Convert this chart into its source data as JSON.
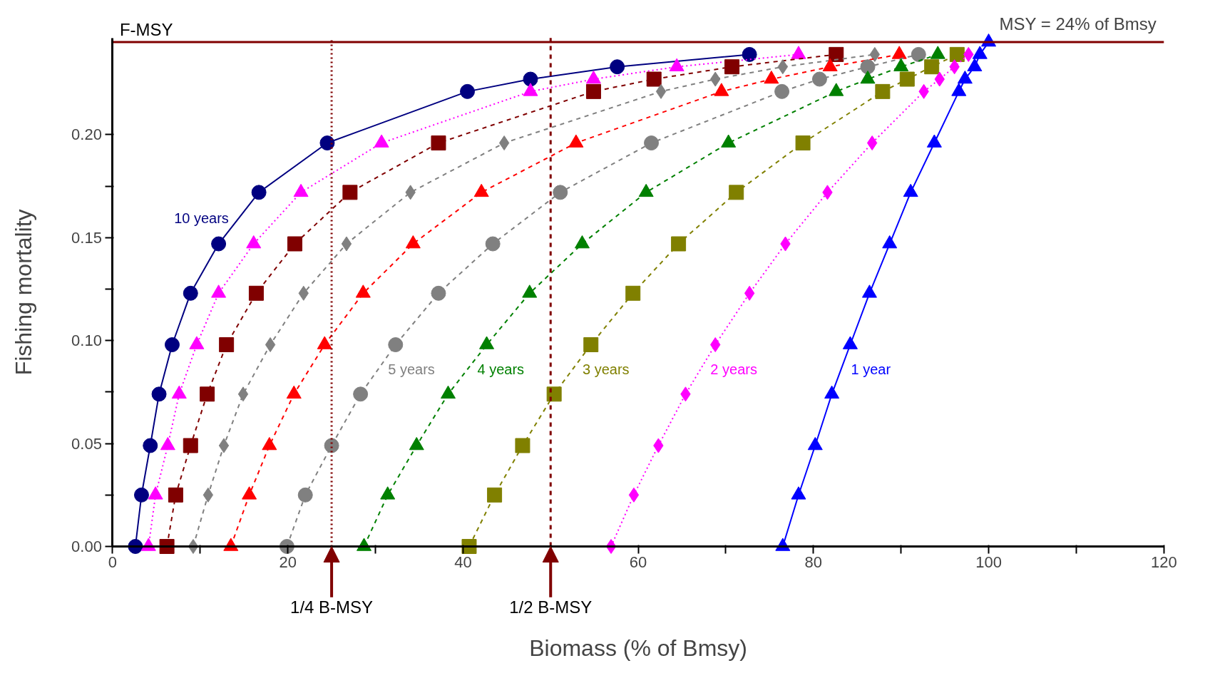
{
  "chart_data": {
    "type": "line",
    "xlabel": "Biomass (% of Bmsy)",
    "ylabel": "Fishing mortality",
    "xlim": [
      0,
      120
    ],
    "ylim": [
      0,
      0.247
    ],
    "xticks": [
      0,
      {
        "value": 10,
        "label": null
      },
      20,
      {
        "value": 30,
        "label": null
      },
      40,
      {
        "value": 50,
        "label": null
      },
      60,
      {
        "value": 70,
        "label": null
      },
      80,
      {
        "value": 90,
        "label": null
      },
      100,
      {
        "value": 110,
        "label": null
      },
      120
    ],
    "yticks": [
      {
        "value": 0,
        "label": "0.00"
      },
      {
        "value": 0.025,
        "label": null
      },
      {
        "value": 0.05,
        "label": "0.05"
      },
      {
        "value": 0.075,
        "label": null
      },
      {
        "value": 0.1,
        "label": "0.10"
      },
      {
        "value": 0.125,
        "label": null
      },
      {
        "value": 0.15,
        "label": "0.15"
      },
      {
        "value": 0.175,
        "label": null
      },
      {
        "value": 0.2,
        "label": "0.20"
      }
    ],
    "grid": false,
    "ref_lines": [
      {
        "axis": "y",
        "value": 0.245,
        "label": "F-MSY",
        "color": "#800000",
        "line_style": "solid"
      },
      {
        "axis": "x",
        "value": 25,
        "label": "1/4 B-MSY",
        "color": "#800000",
        "line_style": "dotted"
      },
      {
        "axis": "x",
        "value": 50,
        "label": "1/2 B-MSY",
        "color": "#800000",
        "line_style": "dashed"
      }
    ],
    "annotations": [
      "MSY = 24% of Bmsy"
    ],
    "series": [
      {
        "name": "10 years",
        "color": "#000080",
        "marker": "circle",
        "line_style": "solid",
        "x": [
          2.6,
          3.3,
          4.3,
          5.3,
          6.8,
          8.9,
          12.1,
          16.7,
          24.5,
          40.5,
          47.7,
          57.6,
          72.7
        ],
        "values": [
          0,
          0.025,
          0.049,
          0.074,
          0.098,
          0.123,
          0.147,
          0.172,
          0.196,
          0.221,
          0.227,
          0.233,
          0.239
        ]
      },
      {
        "color": "#ff00ff",
        "marker": "triangle",
        "line_style": "dotted",
        "x": [
          4.1,
          4.9,
          6.3,
          7.6,
          9.6,
          12.1,
          16.1,
          21.5,
          30.7,
          47.7,
          54.9,
          64.4,
          78.3
        ],
        "values": [
          0,
          0.025,
          0.049,
          0.074,
          0.098,
          0.123,
          0.147,
          0.172,
          0.196,
          0.221,
          0.227,
          0.233,
          0.239
        ]
      },
      {
        "color": "#800000",
        "marker": "square",
        "line_style": "dashed",
        "x": [
          6.2,
          7.2,
          8.9,
          10.8,
          13.0,
          16.4,
          20.8,
          27.1,
          37.2,
          54.9,
          61.8,
          70.7,
          82.6
        ],
        "values": [
          0,
          0.025,
          0.049,
          0.074,
          0.098,
          0.123,
          0.147,
          0.172,
          0.196,
          0.221,
          0.227,
          0.233,
          0.239
        ]
      },
      {
        "color": "#808080",
        "marker": "diamond",
        "line_style": "dashed",
        "x": [
          9.2,
          10.9,
          12.7,
          14.9,
          18.0,
          21.8,
          26.7,
          34.0,
          44.7,
          62.6,
          68.8,
          76.5,
          87.0
        ],
        "values": [
          0,
          0.025,
          0.049,
          0.074,
          0.098,
          0.123,
          0.147,
          0.172,
          0.196,
          0.221,
          0.227,
          0.233,
          0.239
        ]
      },
      {
        "color": "#ff0000",
        "marker": "triangle",
        "line_style": "dashed",
        "x": [
          13.5,
          15.6,
          17.9,
          20.7,
          24.2,
          28.6,
          34.3,
          42.1,
          52.9,
          69.5,
          75.2,
          81.9,
          89.8
        ],
        "values": [
          0,
          0.025,
          0.049,
          0.074,
          0.098,
          0.123,
          0.147,
          0.172,
          0.196,
          0.221,
          0.227,
          0.233,
          0.239
        ]
      },
      {
        "name": "5 years",
        "color": "#808080",
        "marker": "circle",
        "line_style": "dashed",
        "x": [
          19.9,
          22.0,
          25.0,
          28.3,
          32.3,
          37.2,
          43.4,
          51.1,
          61.5,
          76.4,
          80.7,
          86.2,
          92.0
        ],
        "values": [
          0,
          0.025,
          0.049,
          0.074,
          0.098,
          0.123,
          0.147,
          0.172,
          0.196,
          0.221,
          0.227,
          0.233,
          0.239
        ]
      },
      {
        "name": "4 years",
        "color": "#008000",
        "marker": "triangle",
        "line_style": "dashed",
        "x": [
          28.7,
          31.4,
          34.7,
          38.3,
          42.7,
          47.6,
          53.6,
          60.9,
          70.3,
          82.6,
          86.2,
          90.0,
          94.2
        ],
        "values": [
          0,
          0.025,
          0.049,
          0.074,
          0.098,
          0.123,
          0.147,
          0.172,
          0.196,
          0.221,
          0.227,
          0.233,
          0.239
        ]
      },
      {
        "name": "3 years",
        "color": "#808000",
        "marker": "square",
        "line_style": "dashed",
        "x": [
          40.7,
          43.6,
          46.8,
          50.4,
          54.6,
          59.4,
          64.6,
          71.2,
          78.8,
          87.9,
          90.7,
          93.5,
          96.4
        ],
        "values": [
          0,
          0.025,
          0.049,
          0.074,
          0.098,
          0.123,
          0.147,
          0.172,
          0.196,
          0.221,
          0.227,
          0.233,
          0.239
        ]
      },
      {
        "name": "2 years",
        "color": "#ff00ff",
        "marker": "diamond",
        "line_style": "dotted",
        "x": [
          56.9,
          59.5,
          62.3,
          65.4,
          68.8,
          72.7,
          76.8,
          81.6,
          86.7,
          92.6,
          94.4,
          96.1,
          97.7
        ],
        "values": [
          0,
          0.025,
          0.049,
          0.074,
          0.098,
          0.123,
          0.147,
          0.172,
          0.196,
          0.221,
          0.227,
          0.233,
          0.239
        ]
      },
      {
        "name": "1 year",
        "color": "#0000ff",
        "marker": "triangle",
        "line_style": "solid",
        "x": [
          76.5,
          78.3,
          80.2,
          82.1,
          84.2,
          86.4,
          88.7,
          91.1,
          93.8,
          96.6,
          97.3,
          98.4,
          99.0,
          100
        ],
        "values": [
          0,
          0.025,
          0.049,
          0.074,
          0.098,
          0.123,
          0.147,
          0.172,
          0.196,
          0.221,
          0.227,
          0.233,
          0.239,
          0.245
        ]
      }
    ]
  }
}
